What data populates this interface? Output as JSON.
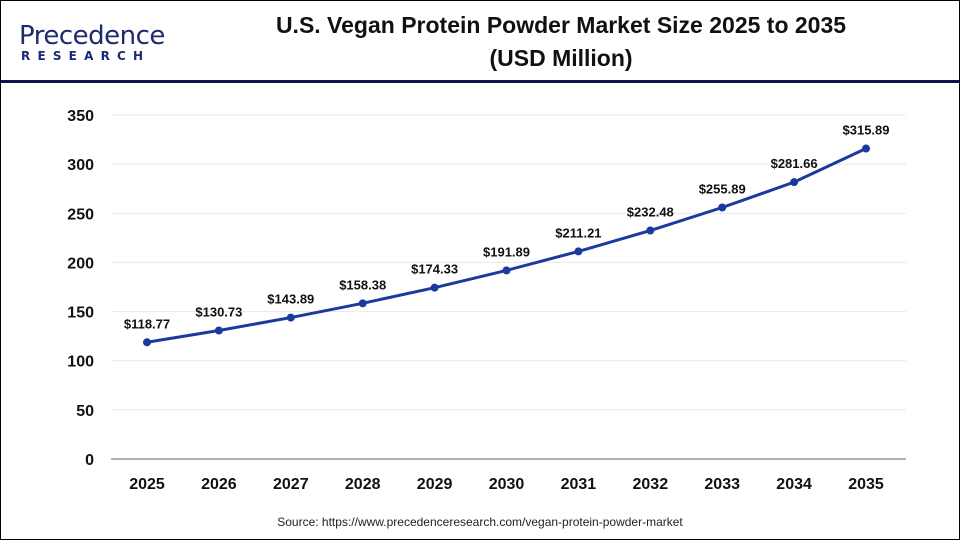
{
  "logo": {
    "brand": "Precedence",
    "sub": "RESEARCH"
  },
  "title_line1": "U.S. Vegan Protein Powder Market Size 2025 to 2035",
  "title_line2": "(USD Million)",
  "source": "Source: https://www.precedenceresearch.com/vegan-protein-powder-market",
  "colors": {
    "line": "#1a3a9c",
    "title_rule": "#0d1447",
    "grid": "#e8e8e8",
    "axis": "#b0b0b0"
  },
  "chart_data": {
    "type": "line",
    "title": "U.S. Vegan Protein Powder Market Size 2025 to 2035 (USD Million)",
    "categories": [
      "2025",
      "2026",
      "2027",
      "2028",
      "2029",
      "2030",
      "2031",
      "2032",
      "2033",
      "2034",
      "2035"
    ],
    "values": [
      118.77,
      130.73,
      143.89,
      158.38,
      174.33,
      191.89,
      211.21,
      232.48,
      255.89,
      281.66,
      315.89
    ],
    "data_labels": [
      "$118.77",
      "$130.73",
      "$143.89",
      "$158.38",
      "$174.33",
      "$191.89",
      "$211.21",
      "$232.48",
      "$255.89",
      "$281.66",
      "$315.89"
    ],
    "yticks": [
      0,
      50,
      100,
      150,
      200,
      250,
      300,
      350
    ],
    "ylim": [
      0,
      350
    ],
    "grid": true,
    "legend": "none"
  }
}
